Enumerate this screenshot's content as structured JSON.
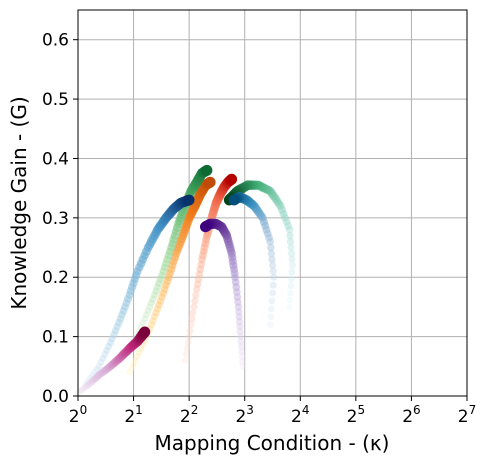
{
  "chart_data": {
    "type": "scatter",
    "title": "",
    "xlabel": "Mapping Condition - (κ)",
    "ylabel": "Knowledge Gain - (G)",
    "x_scale": "log2",
    "xlim": [
      1,
      128
    ],
    "ylim": [
      0,
      0.65
    ],
    "grid": true,
    "x_ticks": [
      {
        "value": 1,
        "base": "2",
        "exp": "0"
      },
      {
        "value": 2,
        "base": "2",
        "exp": "1"
      },
      {
        "value": 4,
        "base": "2",
        "exp": "2"
      },
      {
        "value": 8,
        "base": "2",
        "exp": "3"
      },
      {
        "value": 16,
        "base": "2",
        "exp": "4"
      },
      {
        "value": 32,
        "base": "2",
        "exp": "5"
      },
      {
        "value": 64,
        "base": "2",
        "exp": "6"
      },
      {
        "value": 128,
        "base": "2",
        "exp": "7"
      }
    ],
    "y_ticks": [
      {
        "value": 0.0,
        "label": "0.0"
      },
      {
        "value": 0.1,
        "label": "0.1"
      },
      {
        "value": 0.2,
        "label": "0.2"
      },
      {
        "value": 0.3,
        "label": "0.3"
      },
      {
        "value": 0.4,
        "label": "0.4"
      },
      {
        "value": 0.5,
        "label": "0.5"
      },
      {
        "value": 0.6,
        "label": "0.6"
      }
    ],
    "series": [
      {
        "colors": [
          "#fff6c4",
          "#fdc06e",
          "#ef7c1a",
          "#c04a07"
        ],
        "points": [
          [
            1.9,
            0.04
          ],
          [
            2.2,
            0.08
          ],
          [
            2.5,
            0.12
          ],
          [
            2.8,
            0.16
          ],
          [
            3.1,
            0.2
          ],
          [
            3.4,
            0.24
          ],
          [
            3.7,
            0.27
          ],
          [
            4.0,
            0.3
          ],
          [
            4.3,
            0.32
          ],
          [
            4.6,
            0.34
          ],
          [
            4.9,
            0.355
          ],
          [
            5.2,
            0.36
          ]
        ]
      },
      {
        "colors": [
          "#e5f4e0",
          "#a6dba0",
          "#4fae67",
          "#0b6b33"
        ],
        "points": [
          [
            2.0,
            0.09
          ],
          [
            2.3,
            0.13
          ],
          [
            2.6,
            0.17
          ],
          [
            2.9,
            0.21
          ],
          [
            3.2,
            0.25
          ],
          [
            3.5,
            0.29
          ],
          [
            3.8,
            0.32
          ],
          [
            4.1,
            0.345
          ],
          [
            4.4,
            0.36
          ],
          [
            4.7,
            0.375
          ],
          [
            5.0,
            0.38
          ]
        ]
      },
      {
        "colors": [
          "#fde0d8",
          "#fcae91",
          "#ef6548",
          "#b30000"
        ],
        "points": [
          [
            3.8,
            0.06
          ],
          [
            4.1,
            0.12
          ],
          [
            4.4,
            0.18
          ],
          [
            4.7,
            0.23
          ],
          [
            5.0,
            0.27
          ],
          [
            5.3,
            0.3
          ],
          [
            5.6,
            0.325
          ],
          [
            5.9,
            0.34
          ],
          [
            6.2,
            0.352
          ],
          [
            6.5,
            0.36
          ],
          [
            6.8,
            0.365
          ]
        ]
      },
      {
        "colors": [
          "#deebf7",
          "#9ecae1",
          "#4292c6",
          "#08306b"
        ],
        "points": [
          [
            1.1,
            0.02
          ],
          [
            1.3,
            0.05
          ],
          [
            1.5,
            0.09
          ],
          [
            1.7,
            0.13
          ],
          [
            1.9,
            0.17
          ],
          [
            2.1,
            0.21
          ],
          [
            2.4,
            0.25
          ],
          [
            2.7,
            0.28
          ],
          [
            3.0,
            0.3
          ],
          [
            3.3,
            0.315
          ],
          [
            3.6,
            0.325
          ],
          [
            4.0,
            0.33
          ]
        ]
      },
      {
        "colors": [
          "#f2e6f2",
          "#d4a6d4",
          "#c02a7d",
          "#7a0139"
        ],
        "points": [
          [
            1.0,
            0.005
          ],
          [
            1.15,
            0.02
          ],
          [
            1.3,
            0.035
          ],
          [
            1.5,
            0.05
          ],
          [
            1.7,
            0.065
          ],
          [
            1.9,
            0.08
          ],
          [
            2.1,
            0.092
          ],
          [
            2.2,
            0.1
          ],
          [
            2.3,
            0.108
          ]
        ]
      },
      {
        "colors": [
          "#efe5f5",
          "#b6a2d8",
          "#6a3d9a",
          "#3f007d"
        ],
        "points": [
          [
            7.8,
            0.05
          ],
          [
            7.6,
            0.1
          ],
          [
            7.4,
            0.15
          ],
          [
            7.1,
            0.2
          ],
          [
            6.8,
            0.24
          ],
          [
            6.4,
            0.27
          ],
          [
            6.0,
            0.285
          ],
          [
            5.6,
            0.29
          ],
          [
            5.2,
            0.29
          ],
          [
            4.9,
            0.285
          ]
        ]
      },
      {
        "colors": [
          "#e5f5f9",
          "#99d8c9",
          "#41ae76",
          "#00441b"
        ],
        "points": [
          [
            14.0,
            0.15
          ],
          [
            14.5,
            0.22
          ],
          [
            14.0,
            0.28
          ],
          [
            12.5,
            0.32
          ],
          [
            11.0,
            0.345
          ],
          [
            9.5,
            0.355
          ],
          [
            8.3,
            0.355
          ],
          [
            7.3,
            0.345
          ],
          [
            6.6,
            0.33
          ]
        ]
      },
      {
        "colors": [
          "#e0ecf4",
          "#9ebcda",
          "#3690c0",
          "#034e7b"
        ],
        "points": [
          [
            11.0,
            0.12
          ],
          [
            11.5,
            0.2
          ],
          [
            11.0,
            0.26
          ],
          [
            10.0,
            0.3
          ],
          [
            9.0,
            0.32
          ],
          [
            8.2,
            0.33
          ],
          [
            7.5,
            0.335
          ],
          [
            7.0,
            0.33
          ]
        ]
      }
    ]
  }
}
